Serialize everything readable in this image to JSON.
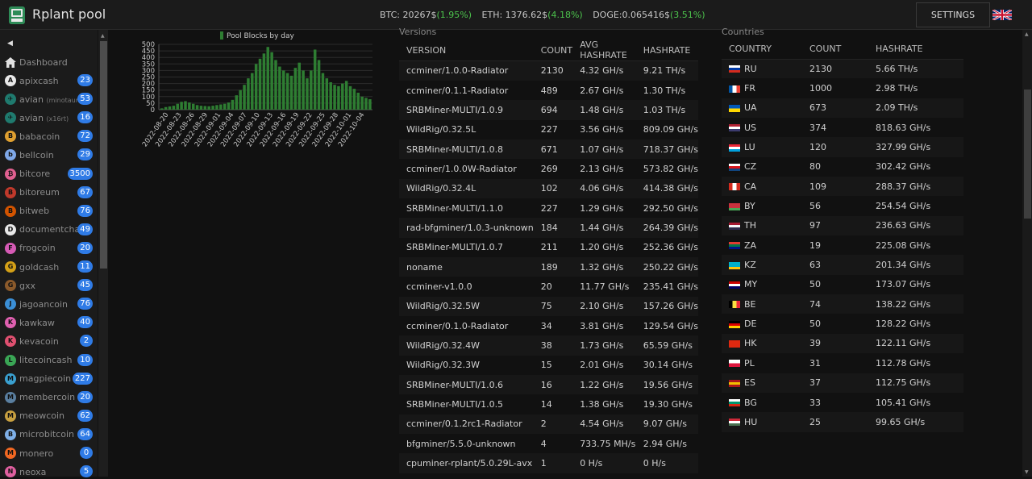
{
  "header": {
    "brand": "Rplant pool",
    "settings_label": "SETTINGS",
    "tickers": [
      {
        "label": "BTC: 20267$",
        "change": "(1.95%)"
      },
      {
        "label": "ETH: 1376.62$",
        "change": "(4.18%)"
      },
      {
        "label": "DOGE:0.065416$",
        "change": "(3.51%)"
      }
    ]
  },
  "sidebar": {
    "home_label": "Dashboard",
    "items": [
      {
        "name": "apixcash",
        "suffix": "",
        "count": "23",
        "color": "#e8e8e8",
        "glyph": "A"
      },
      {
        "name": "avian",
        "suffix": "(minotaurx)",
        "count": "53",
        "color": "#1f7a6e",
        "glyph": "✈"
      },
      {
        "name": "avian",
        "suffix": "(x16rt)",
        "count": "16",
        "color": "#1f7a6e",
        "glyph": "✈"
      },
      {
        "name": "babacoin",
        "suffix": "",
        "count": "72",
        "color": "#e0a030",
        "glyph": "B"
      },
      {
        "name": "bellcoin",
        "suffix": "",
        "count": "29",
        "color": "#7fa8e8",
        "glyph": "b"
      },
      {
        "name": "bitcore",
        "suffix": "",
        "count": "3500",
        "color": "#e06090",
        "glyph": "₿"
      },
      {
        "name": "bitoreum",
        "suffix": "",
        "count": "67",
        "color": "#c0392b",
        "glyph": "B"
      },
      {
        "name": "bitweb",
        "suffix": "",
        "count": "76",
        "color": "#d35400",
        "glyph": "B"
      },
      {
        "name": "documentchain",
        "suffix": "",
        "count": "49",
        "color": "#e8e8e8",
        "glyph": "D"
      },
      {
        "name": "frogcoin",
        "suffix": "",
        "count": "20",
        "color": "#d65ab5",
        "glyph": "F"
      },
      {
        "name": "goldcash",
        "suffix": "",
        "count": "11",
        "color": "#d4a017",
        "glyph": "G"
      },
      {
        "name": "gxx",
        "suffix": "",
        "count": "45",
        "color": "#8b5a2b",
        "glyph": "G"
      },
      {
        "name": "jagoancoin",
        "suffix": "",
        "count": "76",
        "color": "#3b8fd6",
        "glyph": "J"
      },
      {
        "name": "kawkaw",
        "suffix": "",
        "count": "40",
        "color": "#e060b0",
        "glyph": "K"
      },
      {
        "name": "kevacoin",
        "suffix": "",
        "count": "2",
        "color": "#e05070",
        "glyph": "K"
      },
      {
        "name": "litecoincash",
        "suffix": "",
        "count": "10",
        "color": "#3aa655",
        "glyph": "L"
      },
      {
        "name": "magpiecoin",
        "suffix": "",
        "count": "227",
        "color": "#3aa0d0",
        "glyph": "M"
      },
      {
        "name": "membercoin",
        "suffix": "",
        "count": "20",
        "color": "#5a7fa0",
        "glyph": "M"
      },
      {
        "name": "meowcoin",
        "suffix": "",
        "count": "62",
        "color": "#c8a040",
        "glyph": "M"
      },
      {
        "name": "microbitcoin",
        "suffix": "",
        "count": "64",
        "color": "#7fb0e8",
        "glyph": "B"
      },
      {
        "name": "monero",
        "suffix": "",
        "count": "0",
        "color": "#f26822",
        "glyph": "M"
      },
      {
        "name": "neoxa",
        "suffix": "",
        "count": "5",
        "color": "#e060a0",
        "glyph": "N"
      }
    ]
  },
  "chart_data": {
    "type": "bar",
    "legend": "Pool Blocks by day",
    "legend_position": "top",
    "bar_color": "#2e7d32",
    "ylim": [
      0,
      500
    ],
    "yticks": [
      0,
      50,
      100,
      150,
      200,
      250,
      300,
      350,
      400,
      450,
      500
    ],
    "xtick_labels": [
      "2022-08-20",
      "2022-08-23",
      "2022-08-26",
      "2022-08-29",
      "2022-09-01",
      "2022-09-04",
      "2022-09-07",
      "2022-09-10",
      "2022-09-13",
      "2022-09-16",
      "2022-09-19",
      "2022-09-22",
      "2022-09-25",
      "2022-09-28",
      "2022-10-01",
      "2022-10-04"
    ],
    "values": [
      10,
      20,
      25,
      30,
      45,
      60,
      65,
      55,
      45,
      35,
      30,
      28,
      26,
      30,
      35,
      40,
      45,
      55,
      75,
      110,
      150,
      190,
      240,
      280,
      350,
      390,
      430,
      480,
      440,
      380,
      330,
      300,
      280,
      260,
      320,
      360,
      300,
      240,
      300,
      460,
      380,
      280,
      240,
      210,
      190,
      180,
      200,
      220,
      180,
      160,
      130,
      100,
      90,
      80
    ]
  },
  "versions": {
    "title": "Versions",
    "columns": [
      "VERSION",
      "COUNT",
      "AVG HASHRATE",
      "HASHRATE"
    ],
    "rows": [
      [
        "ccminer/1.0.0-Radiator",
        "2130",
        "4.32 GH/s",
        "9.21 TH/s"
      ],
      [
        "ccminer/0.1.1-Radiator",
        "489",
        "2.67 GH/s",
        "1.30 TH/s"
      ],
      [
        "SRBMiner-MULTI/1.0.9",
        "694",
        "1.48 GH/s",
        "1.03 TH/s"
      ],
      [
        "WildRig/0.32.5L",
        "227",
        "3.56 GH/s",
        "809.09 GH/s"
      ],
      [
        "SRBMiner-MULTI/1.0.8",
        "671",
        "1.07 GH/s",
        "718.37 GH/s"
      ],
      [
        "ccminer/1.0.0W-Radiator",
        "269",
        "2.13 GH/s",
        "573.82 GH/s"
      ],
      [
        "WildRig/0.32.4L",
        "102",
        "4.06 GH/s",
        "414.38 GH/s"
      ],
      [
        "SRBMiner-MULTI/1.1.0",
        "227",
        "1.29 GH/s",
        "292.50 GH/s"
      ],
      [
        "rad-bfgminer/1.0.3-unknown",
        "184",
        "1.44 GH/s",
        "264.39 GH/s"
      ],
      [
        "SRBMiner-MULTI/1.0.7",
        "211",
        "1.20 GH/s",
        "252.36 GH/s"
      ],
      [
        "noname",
        "189",
        "1.32 GH/s",
        "250.22 GH/s"
      ],
      [
        "ccminer-v1.0.0",
        "20",
        "11.77 GH/s",
        "235.41 GH/s"
      ],
      [
        "WildRig/0.32.5W",
        "75",
        "2.10 GH/s",
        "157.26 GH/s"
      ],
      [
        "ccminer/0.1.0-Radiator",
        "34",
        "3.81 GH/s",
        "129.54 GH/s"
      ],
      [
        "WildRig/0.32.4W",
        "38",
        "1.73 GH/s",
        "65.59 GH/s"
      ],
      [
        "WildRig/0.32.3W",
        "15",
        "2.01 GH/s",
        "30.14 GH/s"
      ],
      [
        "SRBMiner-MULTI/1.0.6",
        "16",
        "1.22 GH/s",
        "19.56 GH/s"
      ],
      [
        "SRBMiner-MULTI/1.0.5",
        "14",
        "1.38 GH/s",
        "19.30 GH/s"
      ],
      [
        "ccminer/0.1.2rc1-Radiator",
        "2",
        "4.54 GH/s",
        "9.07 GH/s"
      ],
      [
        "bfgminer/5.5.0-unknown",
        "4",
        "733.75 MH/s",
        "2.94 GH/s"
      ],
      [
        "cpuminer-rplant/5.0.29L-avx",
        "1",
        "0 H/s",
        "0 H/s"
      ]
    ]
  },
  "countries": {
    "title": "Countries",
    "columns": [
      "COUNTRY",
      "COUNT",
      "HASHRATE"
    ],
    "rows": [
      {
        "code": "RU",
        "count": "2130",
        "hashrate": "5.66 TH/s",
        "flag": [
          "#ffffff",
          "#0039a6",
          "#d52b1e"
        ],
        "dir": "h"
      },
      {
        "code": "FR",
        "count": "1000",
        "hashrate": "2.98 TH/s",
        "flag": [
          "#0055a4",
          "#ffffff",
          "#ef4135"
        ],
        "dir": "v"
      },
      {
        "code": "UA",
        "count": "673",
        "hashrate": "2.09 TH/s",
        "flag": [
          "#0057b7",
          "#ffd700"
        ],
        "dir": "h"
      },
      {
        "code": "US",
        "count": "374",
        "hashrate": "818.63 GH/s",
        "flag": [
          "#b22234",
          "#ffffff",
          "#3c3b6e"
        ],
        "dir": "h"
      },
      {
        "code": "LU",
        "count": "120",
        "hashrate": "327.99 GH/s",
        "flag": [
          "#ed2939",
          "#ffffff",
          "#00a1de"
        ],
        "dir": "h"
      },
      {
        "code": "CZ",
        "count": "80",
        "hashrate": "302.42 GH/s",
        "flag": [
          "#ffffff",
          "#d7141a",
          "#11457e"
        ],
        "dir": "h"
      },
      {
        "code": "CA",
        "count": "109",
        "hashrate": "288.37 GH/s",
        "flag": [
          "#d52b1e",
          "#ffffff",
          "#d52b1e"
        ],
        "dir": "v"
      },
      {
        "code": "BY",
        "count": "56",
        "hashrate": "254.54 GH/s",
        "flag": [
          "#c8313e",
          "#c8313e",
          "#4aa657"
        ],
        "dir": "h"
      },
      {
        "code": "TH",
        "count": "97",
        "hashrate": "236.63 GH/s",
        "flag": [
          "#a51931",
          "#f4f5f8",
          "#2d2a4a"
        ],
        "dir": "h"
      },
      {
        "code": "ZA",
        "count": "19",
        "hashrate": "225.08 GH/s",
        "flag": [
          "#e03c31",
          "#007749",
          "#001489"
        ],
        "dir": "h"
      },
      {
        "code": "KZ",
        "count": "63",
        "hashrate": "201.34 GH/s",
        "flag": [
          "#00afca",
          "#00afca",
          "#fec50c"
        ],
        "dir": "h"
      },
      {
        "code": "MY",
        "count": "50",
        "hashrate": "173.07 GH/s",
        "flag": [
          "#cc0001",
          "#ffffff",
          "#010066"
        ],
        "dir": "h"
      },
      {
        "code": "BE",
        "count": "74",
        "hashrate": "138.22 GH/s",
        "flag": [
          "#000000",
          "#fae042",
          "#ed2939"
        ],
        "dir": "v"
      },
      {
        "code": "DE",
        "count": "50",
        "hashrate": "128.22 GH/s",
        "flag": [
          "#000000",
          "#dd0000",
          "#ffce00"
        ],
        "dir": "h"
      },
      {
        "code": "HK",
        "count": "39",
        "hashrate": "122.11 GH/s",
        "flag": [
          "#de2910",
          "#de2910",
          "#de2910"
        ],
        "dir": "h"
      },
      {
        "code": "PL",
        "count": "31",
        "hashrate": "112.78 GH/s",
        "flag": [
          "#ffffff",
          "#dc143c"
        ],
        "dir": "h"
      },
      {
        "code": "ES",
        "count": "37",
        "hashrate": "112.75 GH/s",
        "flag": [
          "#aa151b",
          "#f1bf00",
          "#aa151b"
        ],
        "dir": "h"
      },
      {
        "code": "BG",
        "count": "33",
        "hashrate": "105.41 GH/s",
        "flag": [
          "#ffffff",
          "#00966e",
          "#d62612"
        ],
        "dir": "h"
      },
      {
        "code": "HU",
        "count": "25",
        "hashrate": "99.65 GH/s",
        "flag": [
          "#ce2939",
          "#ffffff",
          "#477050"
        ],
        "dir": "h"
      }
    ]
  }
}
